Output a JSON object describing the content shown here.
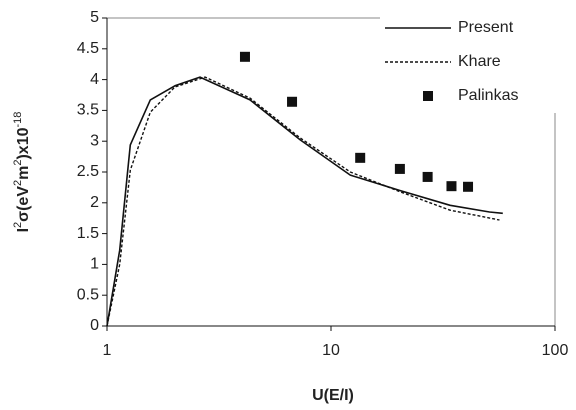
{
  "chart_data": {
    "type": "line",
    "x_label": "U(E/I)",
    "y_label": [
      {
        "text": "I"
      },
      {
        "text": "2",
        "sup": true
      },
      {
        "text": "σ(eV"
      },
      {
        "text": "2",
        "sup": true
      },
      {
        "text": "m"
      },
      {
        "text": "2",
        "sup": true
      },
      {
        "text": ")x10"
      },
      {
        "text": "-18",
        "sup": true
      }
    ],
    "x_log": true,
    "xlim": [
      1,
      100
    ],
    "xticks": [
      1,
      10,
      100
    ],
    "ylim": [
      0,
      5
    ],
    "yticks": [
      0,
      0.5,
      1,
      1.5,
      2,
      2.5,
      3,
      3.5,
      4,
      4.5,
      5
    ],
    "legend": "top-right",
    "series": [
      {
        "name": "Present",
        "style": "solid",
        "color": "#111111",
        "x": [
          1,
          1.14,
          1.27,
          1.56,
          2.01,
          2.6,
          4.35,
          7.3,
          12.2,
          20.3,
          34,
          51,
          58.5
        ],
        "values": [
          0,
          1.23,
          2.94,
          3.67,
          3.9,
          4.04,
          3.67,
          3.02,
          2.45,
          2.2,
          1.96,
          1.85,
          1.83
        ]
      },
      {
        "name": "Khare",
        "style": "dashed",
        "color": "#111111",
        "x": [
          1,
          1.14,
          1.27,
          1.56,
          2.01,
          2.74,
          4.35,
          7.3,
          12.2,
          20.3,
          34,
          56.5
        ],
        "values": [
          0,
          1.0,
          2.53,
          3.47,
          3.88,
          4.04,
          3.7,
          3.05,
          2.5,
          2.18,
          1.88,
          1.72
        ]
      },
      {
        "name": "Palinkas",
        "style": "markers",
        "color": "#111111",
        "x": [
          4.13,
          6.7,
          13.5,
          20.3,
          27.0,
          34.5,
          40.9
        ],
        "values": [
          4.37,
          3.64,
          2.73,
          2.55,
          2.42,
          2.27,
          2.26
        ]
      }
    ]
  }
}
